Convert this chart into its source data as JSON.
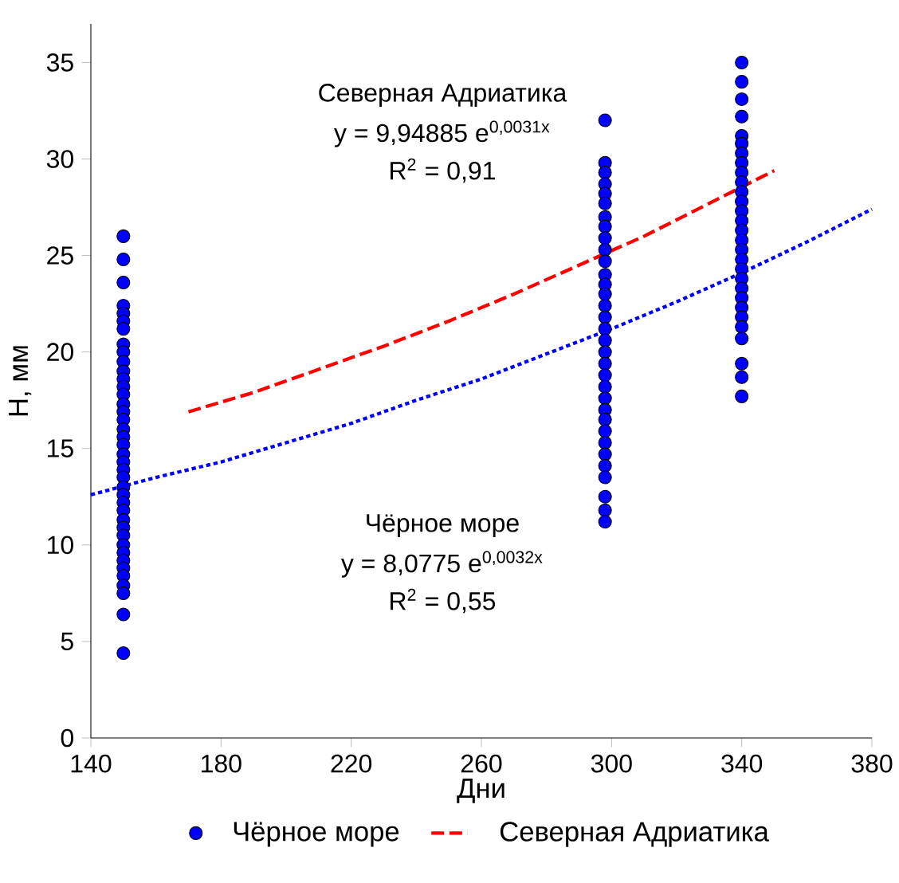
{
  "chart_data": {
    "type": "scatter",
    "xlabel": "Дни",
    "ylabel": "H, мм",
    "xlim": [
      140,
      380
    ],
    "xticks": [
      140,
      180,
      220,
      260,
      300,
      340,
      380
    ],
    "ylim": [
      0,
      37
    ],
    "yticks": [
      0,
      5,
      10,
      15,
      20,
      25,
      30,
      35
    ],
    "grid": false,
    "legend": "bottom",
    "annotations": [
      "Северная Адриатика",
      "y = 9,94885 e$^{0,0031x}$",
      "R$^{2}$ = 0,91",
      "Чёрное море",
      "y = 8,0775 e$^{0,0032x}$",
      "R$^{2}$ = 0,55"
    ],
    "series": [
      {
        "name": "Чёрное море",
        "color": "#0000ff",
        "marker": "circle",
        "x": [
          150,
          150,
          150,
          150,
          150,
          150,
          150,
          150,
          150,
          150,
          150,
          150,
          150,
          150,
          150,
          150,
          150,
          150,
          150,
          150,
          150,
          150,
          150,
          150,
          150,
          150,
          150,
          150,
          150,
          150,
          150,
          150,
          150,
          150,
          150,
          150,
          150,
          150,
          150,
          150,
          298,
          298,
          298,
          298,
          298,
          298,
          298,
          298,
          298,
          298,
          298,
          298,
          298,
          298,
          298,
          298,
          298,
          298,
          298,
          298,
          298,
          298,
          298,
          298,
          298,
          298,
          298,
          298,
          298,
          298,
          298,
          298,
          298,
          340,
          340,
          340,
          340,
          340,
          340,
          340,
          340,
          340,
          340,
          340,
          340,
          340,
          340,
          340,
          340,
          340,
          340,
          340,
          340,
          340,
          340,
          340,
          340,
          340,
          340,
          340,
          340,
          340
        ],
        "values": [
          26,
          24.8,
          23.6,
          22.4,
          22.0,
          21.6,
          21.2,
          20.4,
          20.0,
          19.5,
          19.0,
          18.6,
          18.2,
          17.8,
          17.3,
          16.9,
          16.5,
          16.0,
          15.6,
          15.2,
          14.7,
          14.3,
          13.9,
          13.5,
          13.0,
          12.6,
          12.2,
          11.8,
          11.3,
          10.9,
          10.5,
          10.0,
          9.6,
          9.2,
          8.8,
          8.4,
          7.9,
          7.5,
          6.4,
          4.4,
          32,
          29.8,
          29.3,
          28.7,
          28.2,
          27.7,
          27.0,
          26.5,
          25.9,
          25.3,
          24.7,
          24.0,
          23.5,
          23.0,
          22.4,
          21.8,
          21.2,
          20.6,
          20.0,
          19.4,
          18.8,
          18.2,
          17.6,
          17.0,
          16.5,
          15.9,
          15.3,
          14.7,
          14.1,
          13.5,
          12.5,
          11.8,
          11.2,
          35,
          34,
          33.1,
          32.2,
          31.2,
          30.8,
          30.3,
          29.8,
          29.3,
          28.8,
          28.3,
          27.8,
          27.3,
          26.8,
          26.3,
          25.8,
          25.3,
          24.8,
          24.3,
          23.8,
          23.3,
          22.8,
          22.3,
          21.8,
          21.3,
          20.7,
          19.4,
          18.7,
          17.7
        ]
      },
      {
        "type": "line",
        "color": "#0000ff",
        "line_style": "dotted",
        "marker": "none",
        "x": [
          140,
          160,
          180,
          200,
          220,
          240,
          260,
          280,
          300,
          320,
          340,
          360,
          380
        ],
        "values": [
          12.6,
          13.5,
          14.3,
          15.3,
          16.3,
          17.5,
          18.6,
          19.9,
          21.2,
          22.6,
          24.1,
          25.7,
          27.4
        ]
      },
      {
        "name": "Северная Адриатика",
        "type": "line",
        "color": "#ff0000",
        "line_style": "dashed",
        "marker": "none",
        "x": [
          170,
          190,
          210,
          230,
          250,
          270,
          290,
          310,
          330,
          350
        ],
        "values": [
          16.9,
          17.9,
          19.1,
          20.3,
          21.6,
          23.0,
          24.5,
          26.0,
          27.7,
          29.4
        ]
      }
    ]
  }
}
